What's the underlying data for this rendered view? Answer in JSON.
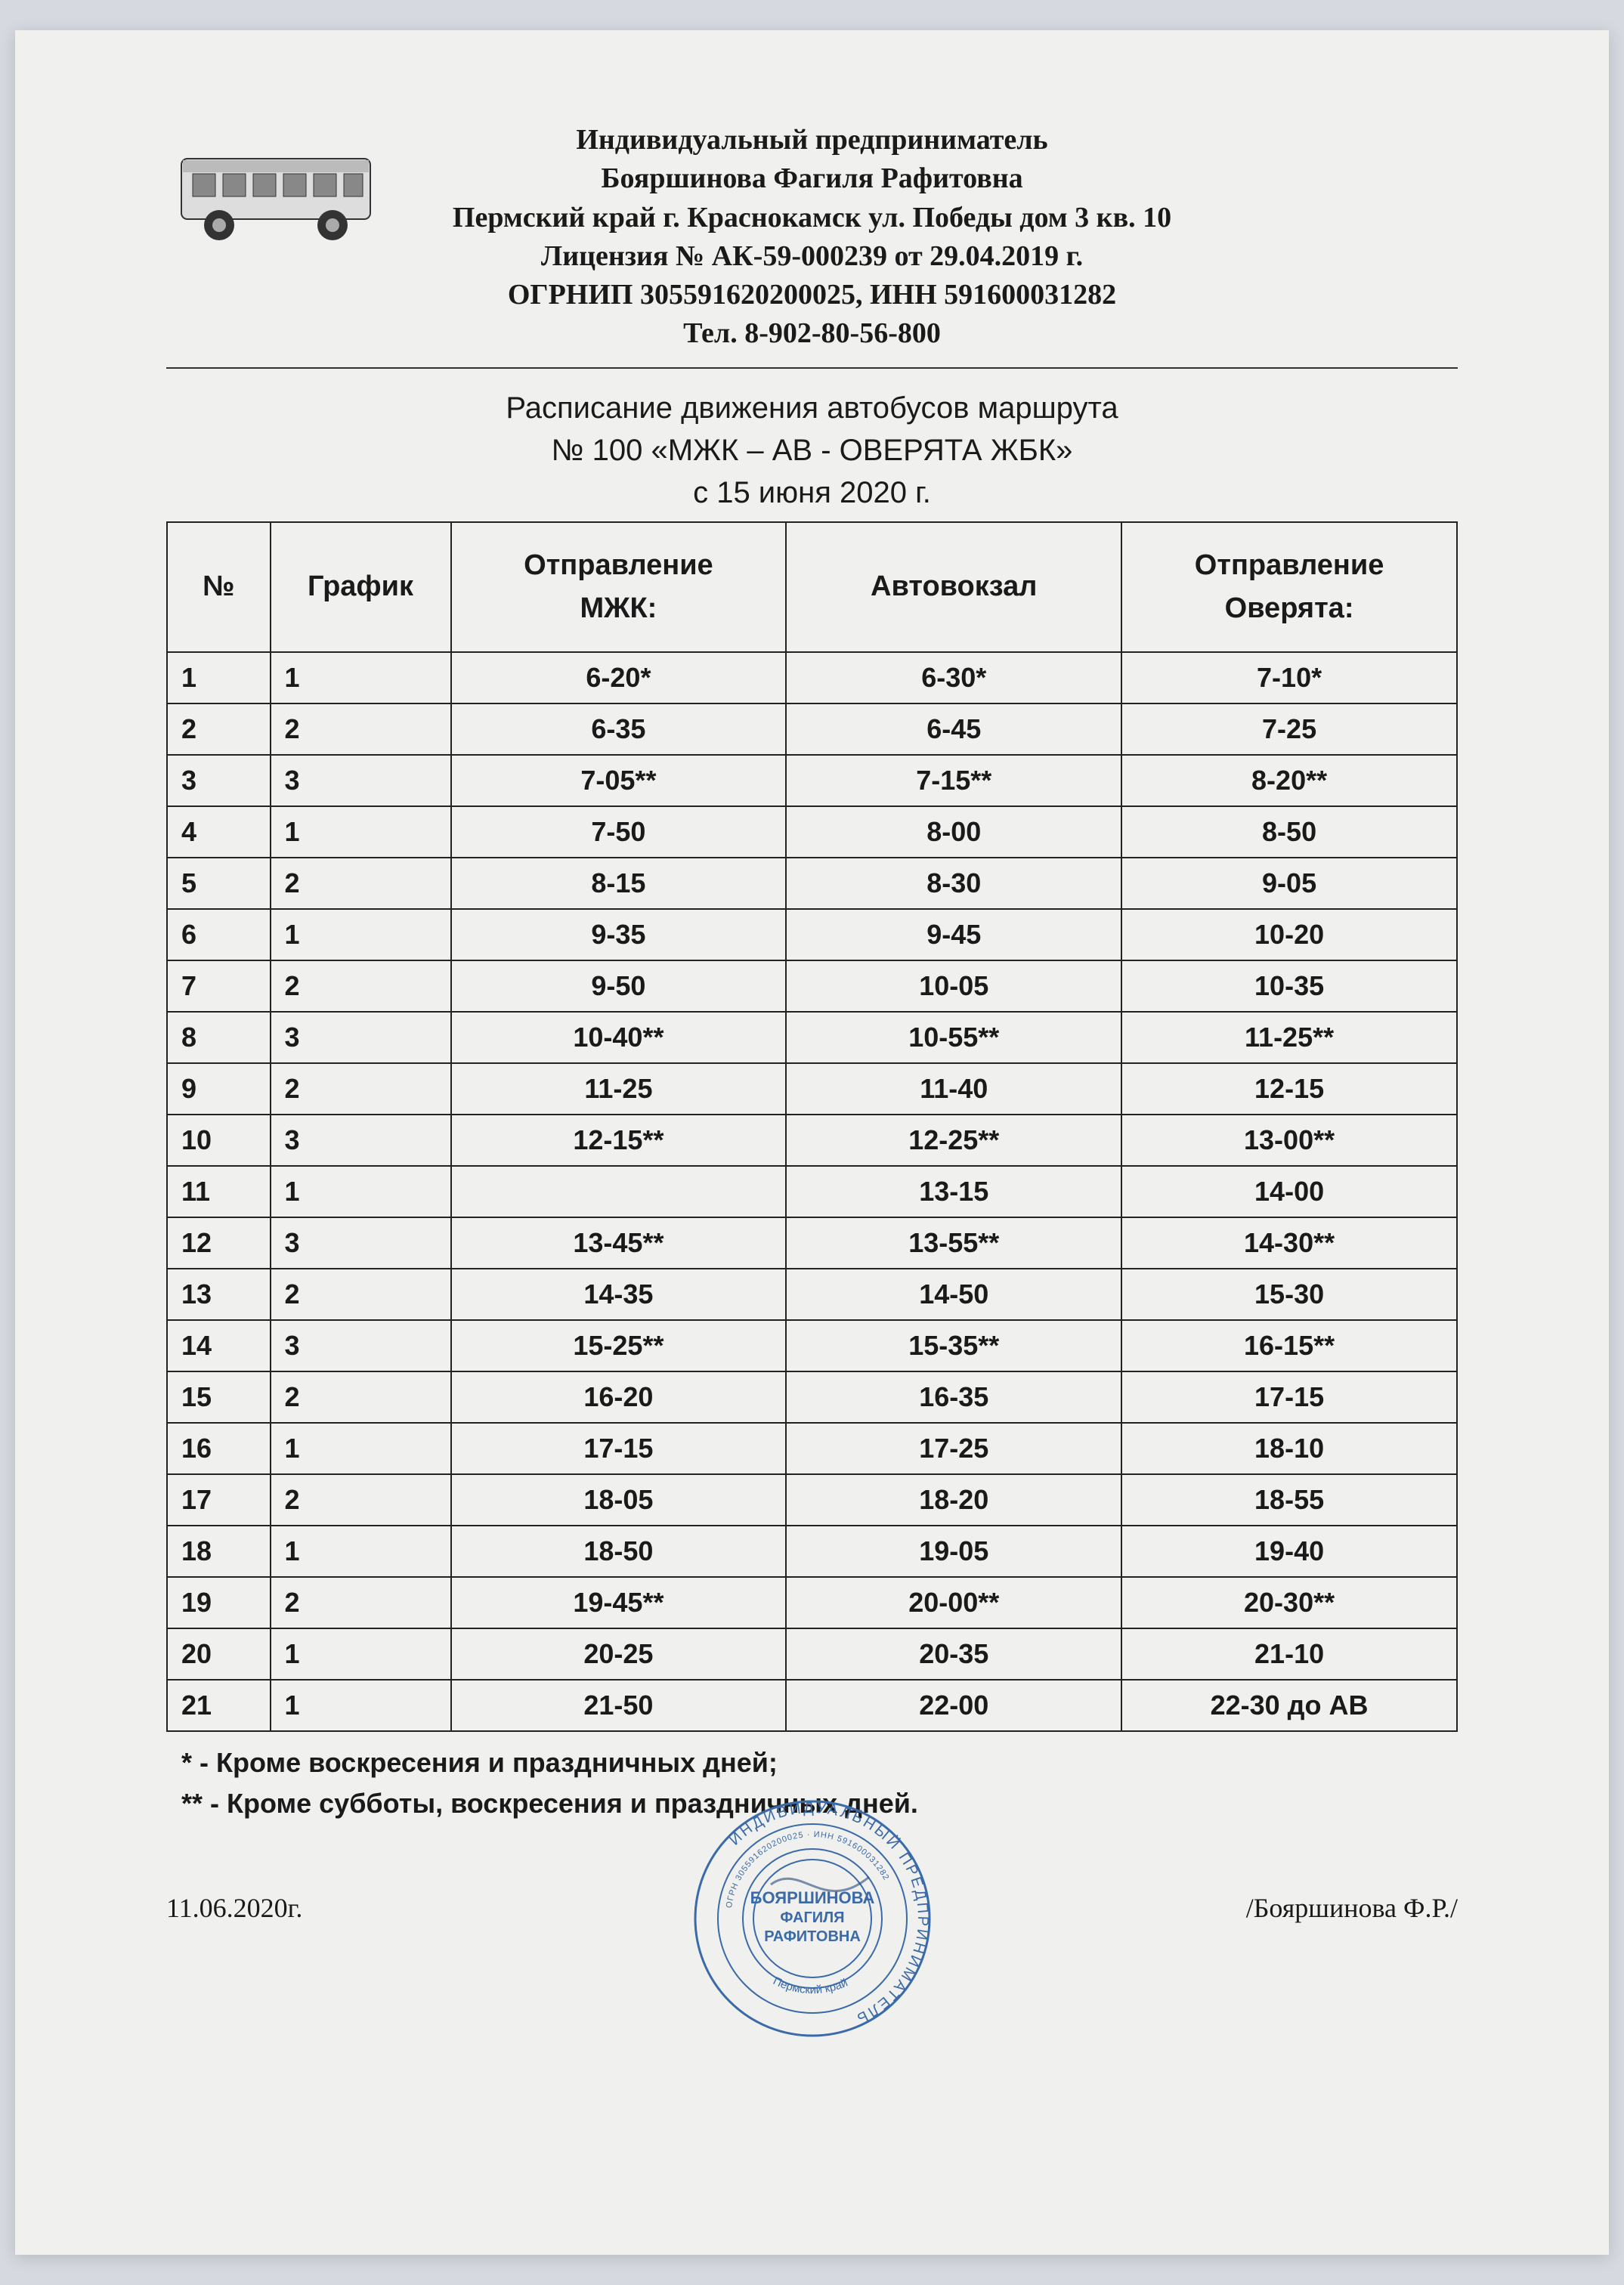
{
  "colors": {
    "page_bg": "#f0f0ee",
    "text": "#1a1a1a",
    "border": "#222222",
    "stamp": "#3a6aa8",
    "bus_body": "#dddddd",
    "bus_outline": "#333333"
  },
  "letterhead": {
    "line1": "Индивидуальный предприниматель",
    "line2": "Бояршинова Фагиля Рафитовна",
    "line3": "Пермский край г. Краснокамск ул. Победы дом 3 кв. 10",
    "line4": "Лицензия № АК-59-000239 от 29.04.2019 г.",
    "line5": "ОГРНИП 305591620200025, ИНН 591600031282",
    "line6": "Тел. 8-902-80-56-800"
  },
  "title": {
    "line1": "Расписание движения автобусов маршрута",
    "line2": "№ 100  «МЖК – АВ - ОВЕРЯТА ЖБК»",
    "line3": "с 15 июня 2020 г."
  },
  "table": {
    "columns": [
      "№",
      "График",
      "Отправление\nМЖК:",
      "Автовокзал",
      "Отправление\nОверята:"
    ],
    "col_widths_pct": [
      8,
      14,
      26,
      26,
      26
    ],
    "header_fontsize_pt": 28,
    "cell_fontsize_pt": 27,
    "rows": [
      [
        "1",
        "1",
        "6-20*",
        "6-30*",
        "7-10*"
      ],
      [
        "2",
        "2",
        "6-35",
        "6-45",
        "7-25"
      ],
      [
        "3",
        "3",
        "7-05**",
        "7-15**",
        "8-20**"
      ],
      [
        "4",
        "1",
        "7-50",
        "8-00",
        "8-50"
      ],
      [
        "5",
        "2",
        "8-15",
        "8-30",
        "9-05"
      ],
      [
        "6",
        "1",
        "9-35",
        "9-45",
        "10-20"
      ],
      [
        "7",
        "2",
        "9-50",
        "10-05",
        "10-35"
      ],
      [
        "8",
        "3",
        "10-40**",
        "10-55**",
        "11-25**"
      ],
      [
        "9",
        "2",
        "11-25",
        "11-40",
        "12-15"
      ],
      [
        "10",
        "3",
        "12-15**",
        "12-25**",
        "13-00**"
      ],
      [
        "11",
        "1",
        "",
        "13-15",
        "14-00"
      ],
      [
        "12",
        "3",
        "13-45**",
        "13-55**",
        "14-30**"
      ],
      [
        "13",
        "2",
        "14-35",
        "14-50",
        "15-30"
      ],
      [
        "14",
        "3",
        "15-25**",
        "15-35**",
        "16-15**"
      ],
      [
        "15",
        "2",
        "16-20",
        "16-35",
        "17-15"
      ],
      [
        "16",
        "1",
        "17-15",
        "17-25",
        "18-10"
      ],
      [
        "17",
        "2",
        "18-05",
        "18-20",
        "18-55"
      ],
      [
        "18",
        "1",
        "18-50",
        "19-05",
        "19-40"
      ],
      [
        "19",
        "2",
        "19-45**",
        "20-00**",
        "20-30**"
      ],
      [
        "20",
        "1",
        "20-25",
        "20-35",
        "21-10"
      ],
      [
        "21",
        "1",
        "21-50",
        "22-00",
        "22-30 до АВ"
      ]
    ]
  },
  "footnotes": {
    "note1": "*   - Кроме воскресения и праздничных дней;",
    "note2": "** - Кроме субботы, воскресения и праздничных дней."
  },
  "footer": {
    "date": "11.06.2020г.",
    "signer": "/Бояршинова Ф.Р./"
  },
  "stamp": {
    "outer_text": "ИНДИВИДУАЛЬНЫЙ  ПРЕДПРИНИМАТЕЛЬ",
    "inner_line1": "БОЯРШИНОВА",
    "inner_line2": "ФАГИЛЯ",
    "inner_line3": "РАФИТОВНА",
    "bottom_text": "Пермский край",
    "ring_text": "ОГРН 305591620200025 · ИНН 591600031282"
  }
}
